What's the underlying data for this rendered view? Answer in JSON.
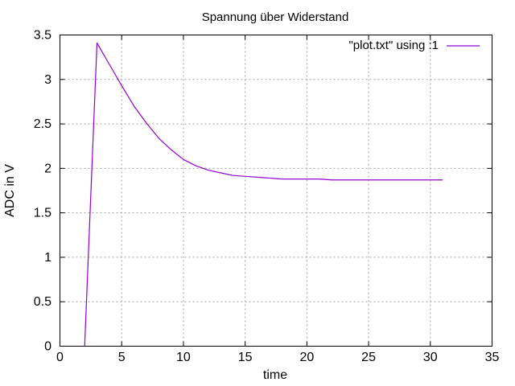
{
  "chart_data": {
    "type": "line",
    "title": "Spannung über Widerstand",
    "xlabel": "time",
    "ylabel": "ADC in V",
    "xlim": [
      0,
      35
    ],
    "ylim": [
      0,
      3.5
    ],
    "xticks": [
      0,
      5,
      10,
      15,
      20,
      25,
      30,
      35
    ],
    "xtick_labels": [
      "0",
      "5",
      "10",
      "15",
      "20",
      "25",
      "30",
      "35"
    ],
    "yticks": [
      0,
      0.5,
      1,
      1.5,
      2,
      2.5,
      3,
      3.5
    ],
    "ytick_labels": [
      "0",
      "0.5",
      "1",
      "1.5",
      "2",
      "2.5",
      "3",
      "3.5"
    ],
    "grid": true,
    "legend_position": "top-right",
    "series": [
      {
        "name": "\"plot.txt\" using :1",
        "color": "#9400d3",
        "x": [
          2,
          3,
          4,
          5,
          6,
          7,
          8,
          9,
          10,
          11,
          12,
          13,
          14,
          15,
          16,
          17,
          18,
          19,
          20,
          21,
          22,
          23,
          24,
          25,
          26,
          27,
          28,
          29,
          30,
          31
        ],
        "y": [
          0,
          3.41,
          3.17,
          2.93,
          2.7,
          2.51,
          2.34,
          2.21,
          2.1,
          2.03,
          1.98,
          1.95,
          1.92,
          1.91,
          1.9,
          1.89,
          1.88,
          1.88,
          1.88,
          1.88,
          1.87,
          1.87,
          1.87,
          1.87,
          1.87,
          1.87,
          1.87,
          1.87,
          1.87,
          1.87
        ]
      }
    ]
  }
}
